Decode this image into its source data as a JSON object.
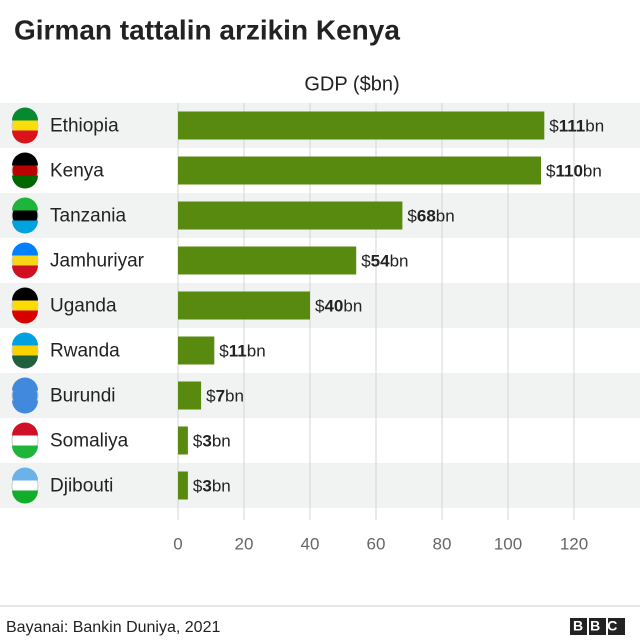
{
  "chart_data": {
    "type": "bar",
    "orientation": "horizontal",
    "title": "Girman tattalin arzikin Kenya",
    "x_label": "GDP ($bn)",
    "categories": [
      "Ethiopia",
      "Kenya",
      "Tanzania",
      "Jamhuriyar",
      "Uganda",
      "Rwanda",
      "Burundi",
      "Somaliya",
      "Djibouti"
    ],
    "values": [
      111,
      110,
      68,
      54,
      40,
      11,
      7,
      3,
      3
    ],
    "value_labels": [
      "$111bn",
      "$110bn",
      "$68bn",
      "$54bn",
      "$40bn",
      "$11bn",
      "$7bn",
      "$3bn",
      "$3bn"
    ],
    "color": "#588a0f",
    "xlim": [
      0,
      120
    ],
    "xticks": [
      0,
      20,
      40,
      60,
      80,
      100,
      120
    ],
    "grid": true,
    "source": "Bayanai: Bankin Duniya, 2021",
    "logo": "BBC"
  }
}
